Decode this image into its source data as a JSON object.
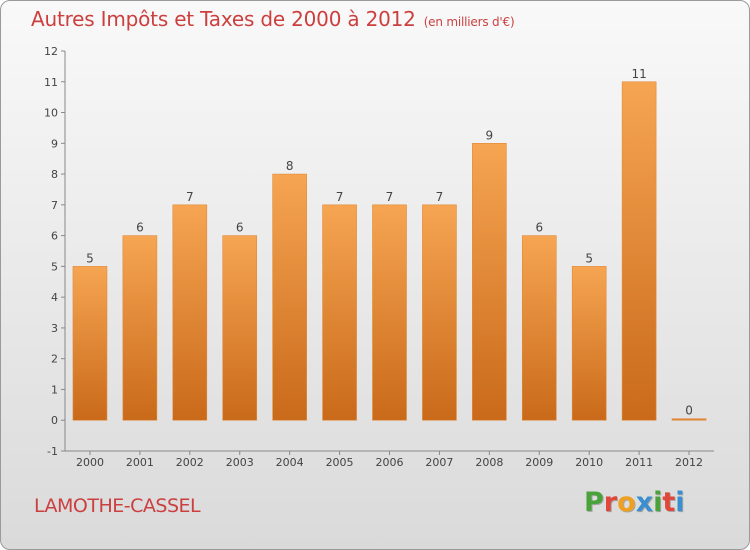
{
  "header": {
    "title": "Autres Impôts et Taxes de 2000 à 2012",
    "subtitle": "(en milliers d'€)"
  },
  "footer": {
    "commune": "LAMOTHE-CASSEL",
    "logo_letters": [
      "P",
      "r",
      "o",
      "x",
      "i",
      "t",
      "i"
    ]
  },
  "colors": {
    "title": "#cc3f3f",
    "bar_top": "#f6a552",
    "bar_bottom": "#c96a1a",
    "logo": [
      "#4aa33a",
      "#e0473a",
      "#f0a020",
      "#3a8fd0",
      "#4aa33a",
      "#e0473a",
      "#3a8fd0"
    ]
  },
  "chart_data": {
    "type": "bar",
    "categories": [
      "2000",
      "2001",
      "2002",
      "2003",
      "2004",
      "2005",
      "2006",
      "2007",
      "2008",
      "2009",
      "2010",
      "2011",
      "2012"
    ],
    "values": [
      5,
      6,
      7,
      6,
      8,
      7,
      7,
      7,
      9,
      6,
      5,
      11,
      0
    ],
    "ylim": [
      -1,
      12
    ],
    "yticks": [
      -1,
      0,
      1,
      2,
      3,
      4,
      5,
      6,
      7,
      8,
      9,
      10,
      11,
      12
    ],
    "grid": false,
    "legend": "none"
  }
}
